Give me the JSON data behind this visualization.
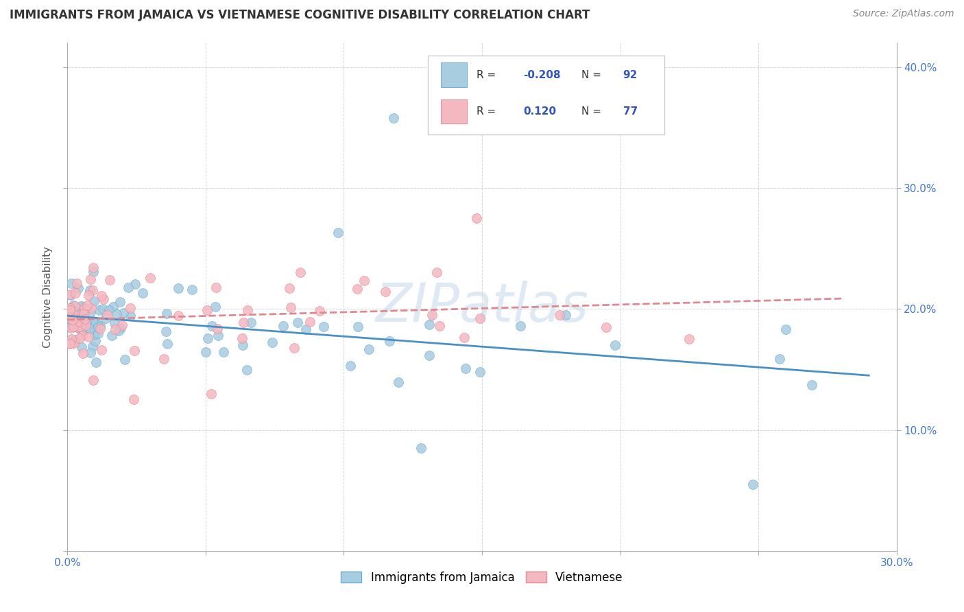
{
  "title": "IMMIGRANTS FROM JAMAICA VS VIETNAMESE COGNITIVE DISABILITY CORRELATION CHART",
  "source": "Source: ZipAtlas.com",
  "ylabel": "Cognitive Disability",
  "xlim": [
    0.0,
    0.3
  ],
  "ylim": [
    0.0,
    0.42
  ],
  "R_jamaica": -0.208,
  "N_jamaica": 92,
  "R_vietnamese": 0.12,
  "N_vietnamese": 77,
  "jamaica_color": "#a8cce0",
  "vietnamese_color": "#f4b8c0",
  "jamaica_edge_color": "#6aaed6",
  "vietnamese_edge_color": "#e88898",
  "jamaica_line_color": "#4a90c4",
  "vietnamese_line_color": "#e08890",
  "watermark": "ZIPatlas",
  "background_color": "#ffffff",
  "title_color": "#333333",
  "source_color": "#888888",
  "tick_color": "#4477cc",
  "ylabel_color": "#555555"
}
